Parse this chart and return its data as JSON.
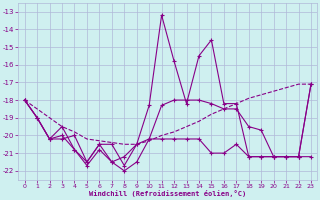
{
  "xlabel": "Windchill (Refroidissement éolien,°C)",
  "background_color": "#cff0f0",
  "grid_color": "#b0b8d8",
  "line_color": "#880088",
  "xlim": [
    -0.5,
    23.5
  ],
  "ylim": [
    -22.5,
    -12.5
  ],
  "yticks": [
    -22,
    -21,
    -20,
    -19,
    -18,
    -17,
    -16,
    -15,
    -14,
    -13
  ],
  "xticks": [
    0,
    1,
    2,
    3,
    4,
    5,
    6,
    7,
    8,
    9,
    10,
    11,
    12,
    13,
    14,
    15,
    16,
    17,
    18,
    19,
    20,
    21,
    22,
    23
  ],
  "lines": [
    {
      "x": [
        0,
        1,
        2,
        3,
        4,
        5,
        6,
        7,
        8,
        9,
        10,
        11,
        12,
        13,
        14,
        15,
        16,
        17,
        18,
        19,
        20,
        21,
        22,
        23
      ],
      "y": [
        -18,
        -19,
        -20.2,
        -19.5,
        -20.8,
        -21.5,
        -20.5,
        -21.5,
        -21.2,
        -20.5,
        -18.3,
        -13.2,
        -15.8,
        -18.2,
        -15.5,
        -14.6,
        -18.2,
        -18.2,
        -21.2,
        -21.2,
        -21.2,
        -21.2,
        -21.2,
        -17.1
      ],
      "style": "solid",
      "marker": true
    },
    {
      "x": [
        0,
        1,
        2,
        3,
        4,
        5,
        6,
        7,
        8,
        9,
        10,
        11,
        12,
        13,
        14,
        15,
        16,
        17,
        18,
        19,
        20,
        21,
        22,
        23
      ],
      "y": [
        -18,
        -19,
        -20.2,
        -20.2,
        -20.0,
        -21.5,
        -20.5,
        -20.5,
        -21.7,
        -20.5,
        -20.2,
        -20.2,
        -20.2,
        -20.2,
        -20.2,
        -21.0,
        -21.0,
        -20.5,
        -21.2,
        -21.2,
        -21.2,
        -21.2,
        -21.2,
        -21.2
      ],
      "style": "solid",
      "marker": true
    },
    {
      "x": [
        0,
        1,
        2,
        3,
        4,
        5,
        6,
        7,
        8,
        9,
        10,
        11,
        12,
        13,
        14,
        15,
        16,
        17,
        18,
        19,
        20,
        21,
        22,
        23
      ],
      "y": [
        -18,
        -18.5,
        -19,
        -19.5,
        -19.8,
        -20.2,
        -20.3,
        -20.4,
        -20.5,
        -20.5,
        -20.3,
        -20.0,
        -19.8,
        -19.5,
        -19.2,
        -18.8,
        -18.5,
        -18.2,
        -17.9,
        -17.7,
        -17.5,
        -17.3,
        -17.1,
        -17.1
      ],
      "style": "dashed",
      "marker": false
    },
    {
      "x": [
        0,
        1,
        2,
        3,
        4,
        5,
        6,
        7,
        8,
        9,
        10,
        11,
        12,
        13,
        14,
        15,
        16,
        17,
        18,
        19,
        20,
        21,
        22,
        23
      ],
      "y": [
        -18,
        -19,
        -20.2,
        -20,
        -20.8,
        -21.7,
        -20.8,
        -21.5,
        -22.0,
        -21.5,
        -20.2,
        -18.3,
        -18.0,
        -18.0,
        -18.0,
        -18.2,
        -18.5,
        -18.5,
        -19.5,
        -19.7,
        -21.2,
        -21.2,
        -21.2,
        -17.1
      ],
      "style": "solid",
      "marker": true
    }
  ]
}
